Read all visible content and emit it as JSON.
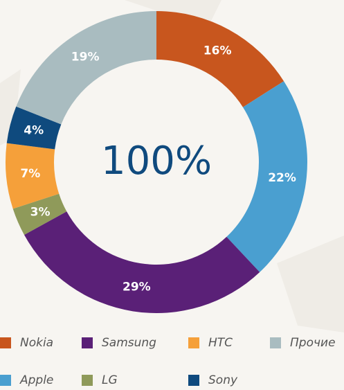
{
  "chart_data": {
    "type": "pie",
    "center_label": "100%",
    "categories": [
      "Nokia",
      "Apple",
      "Samsung",
      "LG",
      "HTC",
      "Sony",
      "Прочие"
    ],
    "values": [
      16,
      22,
      29,
      3,
      7,
      4,
      19
    ],
    "value_labels": [
      "16%",
      "22%",
      "29%",
      "3%",
      "7%",
      "4%",
      "19%"
    ],
    "colors": [
      "#c8561e",
      "#4a9fd0",
      "#5a2077",
      "#8f9a5a",
      "#f5a03a",
      "#0f4a7e",
      "#a9bcc0"
    ],
    "legend": "bottom"
  }
}
